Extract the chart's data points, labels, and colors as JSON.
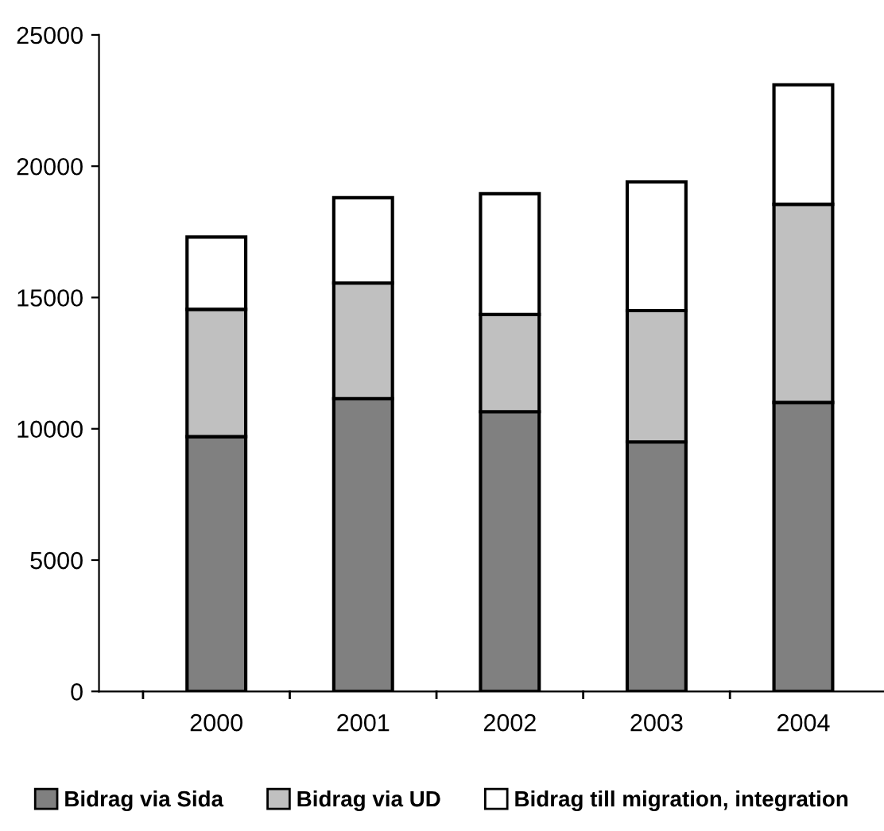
{
  "chart_data": {
    "type": "bar",
    "stacked": true,
    "categories": [
      "2000",
      "2001",
      "2002",
      "2003",
      "2004"
    ],
    "series": [
      {
        "name": "Bidrag via Sida",
        "color": "#808080",
        "values": [
          9700,
          11150,
          10650,
          9500,
          11000
        ]
      },
      {
        "name": "Bidrag via UD",
        "color": "#c0c0c0",
        "values": [
          4850,
          4400,
          3700,
          5000,
          7550
        ]
      },
      {
        "name": "Bidrag till migration, integration",
        "color": "#ffffff",
        "values": [
          2750,
          3250,
          4600,
          4900,
          4550
        ]
      }
    ],
    "ylim": [
      0,
      25000
    ],
    "yticks": [
      0,
      5000,
      10000,
      15000,
      20000,
      25000
    ],
    "grid": false,
    "legend": "bottom"
  }
}
